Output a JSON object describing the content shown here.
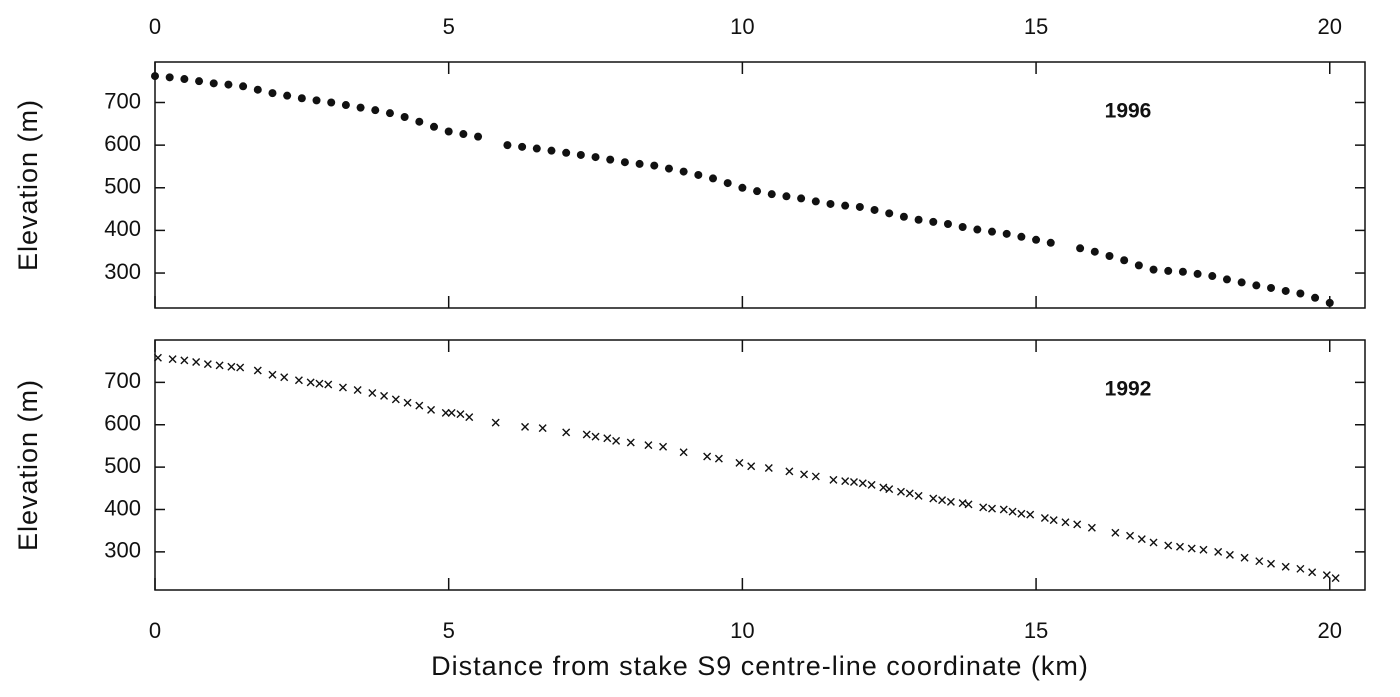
{
  "chart_data": [
    {
      "type": "scatter",
      "marker": "dot",
      "color": "#111",
      "annotation": "1996",
      "ylabel": "Elevation (m)",
      "xaxis_position": "top",
      "xlim": [
        0,
        20.6
      ],
      "ylim": [
        218,
        795
      ],
      "xticks": [
        0,
        5,
        10,
        15,
        20
      ],
      "yticks": [
        300,
        400,
        500,
        600,
        700
      ],
      "x": [
        0,
        0.25,
        0.5,
        0.75,
        1,
        1.25,
        1.5,
        1.75,
        2,
        2.25,
        2.5,
        2.75,
        3,
        3.25,
        3.5,
        3.75,
        4,
        4.25,
        4.5,
        4.75,
        5,
        5.25,
        5.5,
        6,
        6.25,
        6.5,
        6.75,
        7,
        7.25,
        7.5,
        7.75,
        8,
        8.25,
        8.5,
        8.75,
        9,
        9.25,
        9.5,
        9.75,
        10,
        10.25,
        10.5,
        10.75,
        11,
        11.25,
        11.5,
        11.75,
        12,
        12.25,
        12.5,
        12.75,
        13,
        13.25,
        13.5,
        13.75,
        14,
        14.25,
        14.5,
        14.75,
        15,
        15.25,
        15.75,
        16,
        16.25,
        16.5,
        16.75,
        17,
        17.25,
        17.5,
        17.75,
        18,
        18.25,
        18.5,
        18.75,
        19,
        19.25,
        19.5,
        19.75,
        20
      ],
      "values": [
        762,
        759,
        755,
        750,
        745,
        742,
        738,
        730,
        722,
        716,
        710,
        705,
        700,
        694,
        688,
        682,
        675,
        666,
        655,
        643,
        632,
        626,
        620,
        600,
        596,
        592,
        587,
        582,
        577,
        572,
        566,
        560,
        556,
        552,
        545,
        538,
        530,
        522,
        511,
        500,
        492,
        485,
        480,
        475,
        468,
        462,
        458,
        455,
        448,
        440,
        432,
        425,
        420,
        415,
        408,
        402,
        397,
        392,
        385,
        378,
        371,
        358,
        350,
        340,
        330,
        318,
        308,
        305,
        303,
        298,
        293,
        285,
        278,
        271,
        265,
        258,
        252,
        242,
        230
      ]
    },
    {
      "type": "scatter",
      "marker": "cross",
      "color": "#111",
      "annotation": "1992",
      "ylabel": "Elevation (m)",
      "xaxis_position": "bottom",
      "xlabel": "Distance from stake S9 centre-line coordinate (km)",
      "xlim": [
        0,
        20.6
      ],
      "ylim": [
        210,
        800
      ],
      "xticks": [
        0,
        5,
        10,
        15,
        20
      ],
      "yticks": [
        300,
        400,
        500,
        600,
        700
      ],
      "x": [
        0.05,
        0.3,
        0.5,
        0.7,
        0.9,
        1.1,
        1.3,
        1.45,
        1.75,
        2,
        2.2,
        2.45,
        2.65,
        2.8,
        2.95,
        3.2,
        3.45,
        3.7,
        3.9,
        4.1,
        4.3,
        4.5,
        4.7,
        4.95,
        5.05,
        5.2,
        5.35,
        5.8,
        6.3,
        6.6,
        7,
        7.35,
        7.5,
        7.7,
        7.85,
        8.1,
        8.4,
        8.65,
        9,
        9.4,
        9.6,
        9.95,
        10.15,
        10.45,
        10.8,
        11.05,
        11.25,
        11.55,
        11.75,
        11.9,
        12.05,
        12.2,
        12.4,
        12.5,
        12.7,
        12.85,
        13,
        13.25,
        13.4,
        13.55,
        13.75,
        13.85,
        14.1,
        14.25,
        14.45,
        14.6,
        14.75,
        14.9,
        15.15,
        15.3,
        15.5,
        15.7,
        15.95,
        16.35,
        16.6,
        16.8,
        17,
        17.25,
        17.45,
        17.65,
        17.85,
        18.1,
        18.3,
        18.55,
        18.8,
        19,
        19.25,
        19.5,
        19.7,
        19.95,
        20.1
      ],
      "values": [
        758,
        755,
        752,
        748,
        743,
        740,
        737,
        735,
        728,
        718,
        712,
        705,
        700,
        697,
        695,
        688,
        682,
        675,
        668,
        660,
        652,
        645,
        635,
        628,
        628,
        625,
        618,
        605,
        595,
        592,
        582,
        577,
        572,
        568,
        562,
        558,
        552,
        548,
        535,
        525,
        520,
        510,
        502,
        498,
        490,
        483,
        478,
        470,
        467,
        465,
        462,
        458,
        452,
        448,
        442,
        438,
        432,
        426,
        422,
        418,
        415,
        412,
        405,
        402,
        400,
        395,
        390,
        388,
        380,
        375,
        370,
        365,
        357,
        345,
        338,
        330,
        322,
        315,
        312,
        308,
        305,
        300,
        293,
        286,
        278,
        272,
        265,
        260,
        252,
        245,
        238
      ]
    }
  ]
}
